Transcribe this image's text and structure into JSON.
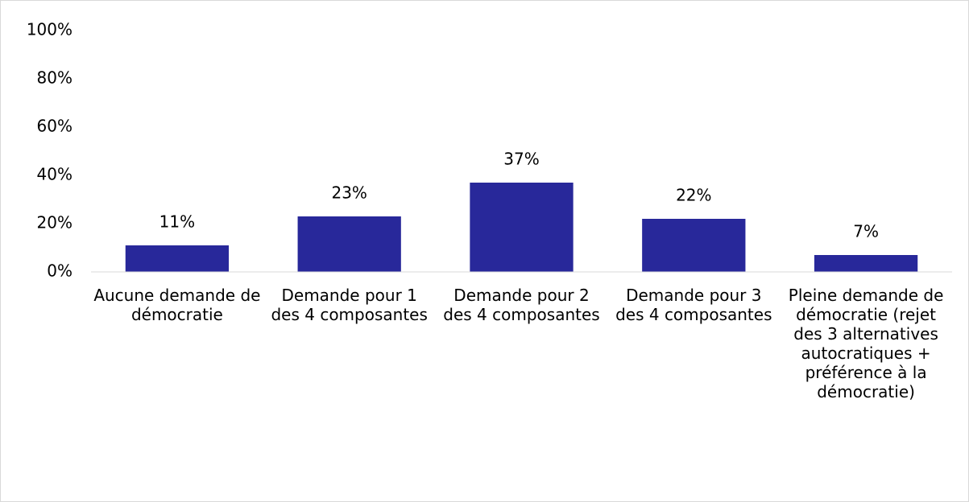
{
  "chart_data": {
    "type": "bar",
    "categories": [
      "Aucune demande de démocratie",
      "Demande pour 1 des 4 composantes",
      "Demande pour 2 des 4 composantes",
      "Demande pour 3 des 4 composantes",
      "Pleine demande de démocratie (rejet des 3 alternatives autocratiques + préférence à la démocratie)"
    ],
    "values": [
      11,
      23,
      37,
      22,
      7
    ],
    "value_labels": [
      "11%",
      "23%",
      "37%",
      "22%",
      "7%"
    ],
    "color": "#28289a",
    "ylim": [
      0,
      100
    ],
    "yticks": [
      {
        "value": 0,
        "label": "0%"
      },
      {
        "value": 20,
        "label": "20%"
      },
      {
        "value": 40,
        "label": "40%"
      },
      {
        "value": 60,
        "label": "60%"
      },
      {
        "value": 80,
        "label": "80%"
      },
      {
        "value": 100,
        "label": "100%"
      }
    ],
    "grid": false
  }
}
